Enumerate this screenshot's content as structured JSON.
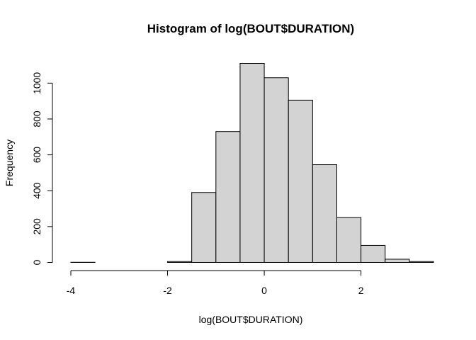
{
  "chart_data": {
    "type": "bar",
    "title": "Histogram of log(BOUT$DURATION)",
    "xlabel": "log(BOUT$DURATION)",
    "ylabel": "Frequency",
    "bin_edges": [
      -4,
      -3.5,
      -3,
      -2.5,
      -2,
      -1.5,
      -1,
      -0.5,
      0,
      0.5,
      1,
      1.5,
      2,
      2.5,
      3,
      3.5
    ],
    "values": [
      1,
      0,
      0,
      0,
      5,
      390,
      730,
      1110,
      1030,
      905,
      545,
      250,
      95,
      18,
      5
    ],
    "xlim": [
      -4,
      3.5
    ],
    "ylim": [
      0,
      1110
    ],
    "x_ticks": [
      -4,
      -2,
      0,
      2
    ],
    "x_tick_labels": [
      "-4",
      "-2",
      "0",
      "2"
    ],
    "y_ticks": [
      0,
      200,
      400,
      600,
      800,
      1000
    ],
    "y_tick_labels": [
      "0",
      "200",
      "400",
      "600",
      "800",
      "1000"
    ],
    "grid": false,
    "bar_fill": "#d3d3d3",
    "bar_stroke": "#000000"
  }
}
